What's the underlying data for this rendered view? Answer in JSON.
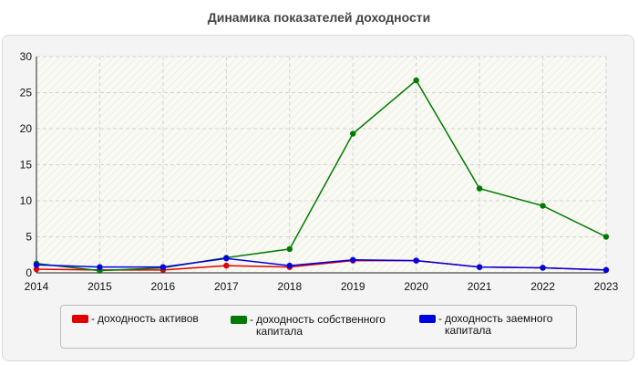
{
  "chart_data": {
    "type": "line",
    "title": "Динамика показателей доходности",
    "x": [
      "2014",
      "2015",
      "2016",
      "2017",
      "2018",
      "2019",
      "2020",
      "2021",
      "2022",
      "2023"
    ],
    "ylim": [
      0,
      30
    ],
    "yticks": [
      "0",
      "5",
      "10",
      "15",
      "20",
      "25",
      "30"
    ],
    "grid": true,
    "legend_position": "bottom",
    "series": [
      {
        "name": "доходность активов",
        "color": "#e00000",
        "values": [
          0.5,
          0.4,
          0.4,
          1.0,
          0.8,
          1.7,
          1.7,
          0.8,
          0.7,
          0.4
        ]
      },
      {
        "name": "доходность собственного капитала",
        "color": "#007a00",
        "values": [
          1.3,
          0.3,
          0.7,
          2.1,
          3.3,
          19.3,
          26.7,
          11.7,
          9.3,
          5.0
        ]
      },
      {
        "name": "доходность заемного капитала",
        "color": "#0000e0",
        "values": [
          1.1,
          0.8,
          0.8,
          2.0,
          1.0,
          1.8,
          1.7,
          0.8,
          0.7,
          0.4
        ]
      }
    ]
  },
  "legend": {
    "dash": "-",
    "items": [
      {
        "label_lines": [
          "доходность активов"
        ]
      },
      {
        "label_lines": [
          "доходность собственного",
          "капитала"
        ]
      },
      {
        "label_lines": [
          "доходность заемного",
          "капитала"
        ]
      }
    ]
  }
}
